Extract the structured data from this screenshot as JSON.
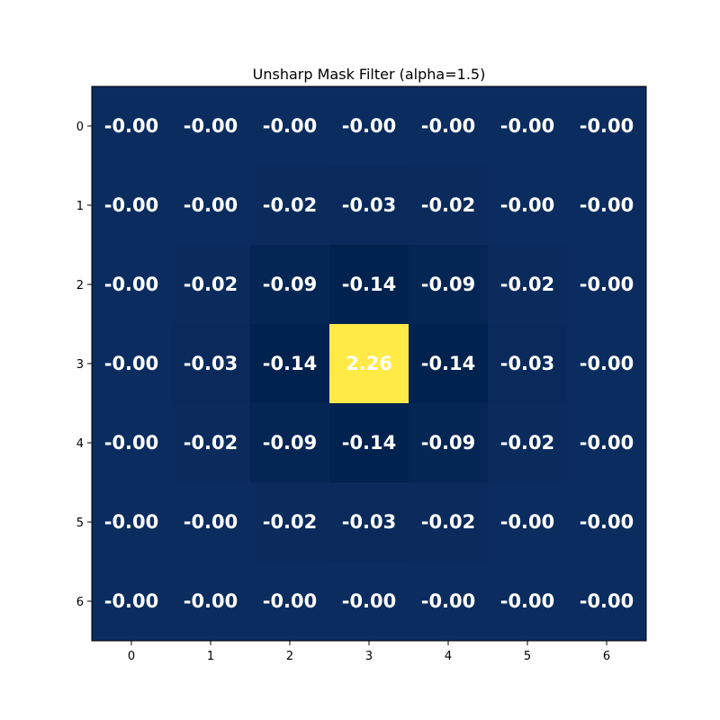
{
  "chart_data": {
    "type": "heatmap",
    "title": "Unsharp Mask Filter (alpha=1.5)",
    "xlabel": "",
    "ylabel": "",
    "x_ticks": [
      "0",
      "1",
      "2",
      "3",
      "4",
      "5",
      "6"
    ],
    "y_ticks": [
      "0",
      "1",
      "2",
      "3",
      "4",
      "5",
      "6"
    ],
    "values": [
      [
        -0.0,
        -0.0,
        -0.0,
        -0.0,
        -0.0,
        -0.0,
        -0.0
      ],
      [
        -0.0,
        -0.0,
        -0.02,
        -0.03,
        -0.02,
        -0.0,
        -0.0
      ],
      [
        -0.0,
        -0.02,
        -0.09,
        -0.14,
        -0.09,
        -0.02,
        -0.0
      ],
      [
        -0.0,
        -0.03,
        -0.14,
        2.26,
        -0.14,
        -0.03,
        -0.0
      ],
      [
        -0.0,
        -0.02,
        -0.09,
        -0.14,
        -0.09,
        -0.02,
        -0.0
      ],
      [
        -0.0,
        -0.0,
        -0.02,
        -0.03,
        -0.02,
        -0.0,
        -0.0
      ],
      [
        -0.0,
        -0.0,
        -0.0,
        -0.0,
        -0.0,
        -0.0,
        -0.0
      ]
    ],
    "labels": [
      [
        "-0.00",
        "-0.00",
        "-0.00",
        "-0.00",
        "-0.00",
        "-0.00",
        "-0.00"
      ],
      [
        "-0.00",
        "-0.00",
        "-0.02",
        "-0.03",
        "-0.02",
        "-0.00",
        "-0.00"
      ],
      [
        "-0.00",
        "-0.02",
        "-0.09",
        "-0.14",
        "-0.09",
        "-0.02",
        "-0.00"
      ],
      [
        "-0.00",
        "-0.03",
        "-0.14",
        "2.26",
        "-0.14",
        "-0.03",
        "-0.00"
      ],
      [
        "-0.00",
        "-0.02",
        "-0.09",
        "-0.14",
        "-0.09",
        "-0.02",
        "-0.00"
      ],
      [
        "-0.00",
        "-0.00",
        "-0.02",
        "-0.03",
        "-0.02",
        "-0.00",
        "-0.00"
      ],
      [
        "-0.00",
        "-0.00",
        "-0.00",
        "-0.00",
        "-0.00",
        "-0.00",
        "-0.00"
      ]
    ],
    "colormap": "cividis",
    "vmin": -0.14,
    "vmax": 2.26,
    "grid": false,
    "legend": "none"
  }
}
